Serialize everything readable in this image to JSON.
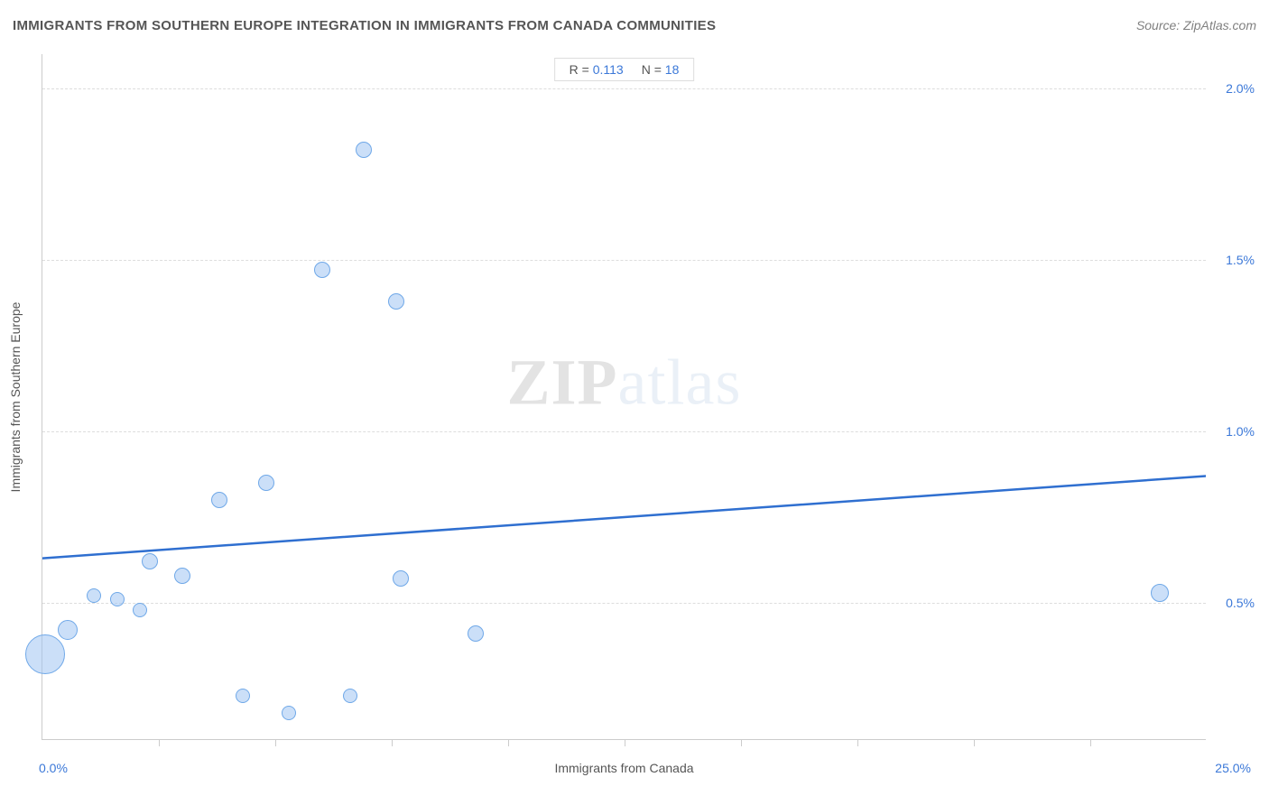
{
  "title": "IMMIGRANTS FROM SOUTHERN EUROPE INTEGRATION IN IMMIGRANTS FROM CANADA COMMUNITIES",
  "source": "Source: ZipAtlas.com",
  "watermark": {
    "zip": "ZIP",
    "atlas": "atlas"
  },
  "stats": {
    "r_label": "R =",
    "r_value": "0.113",
    "n_label": "N =",
    "n_value": "18"
  },
  "chart": {
    "type": "scatter",
    "x_axis": {
      "title": "Immigrants from Canada",
      "min": 0.0,
      "max": 25.0,
      "min_label": "0.0%",
      "max_label": "25.0%",
      "tick_positions": [
        2.5,
        5.0,
        7.5,
        10.0,
        12.5,
        15.0,
        17.5,
        20.0,
        22.5
      ]
    },
    "y_axis": {
      "title": "Immigrants from Southern Europe",
      "min": 0.1,
      "max": 2.1,
      "gridlines": [
        0.5,
        1.0,
        1.5,
        2.0
      ],
      "gridline_labels": [
        "0.5%",
        "1.0%",
        "1.5%",
        "2.0%"
      ]
    },
    "bubble_fill": "rgba(160,197,242,0.55)",
    "bubble_stroke": "#6fa8e8",
    "trend": {
      "color": "#2f6fd0",
      "width": 2.5,
      "y_at_xmin": 0.63,
      "y_at_xmax": 0.87
    },
    "points": [
      {
        "x": 0.05,
        "y": 0.35,
        "r": 22
      },
      {
        "x": 0.55,
        "y": 0.42,
        "r": 11
      },
      {
        "x": 1.1,
        "y": 0.52,
        "r": 8
      },
      {
        "x": 1.6,
        "y": 0.51,
        "r": 8
      },
      {
        "x": 2.1,
        "y": 0.48,
        "r": 8
      },
      {
        "x": 2.3,
        "y": 0.62,
        "r": 9
      },
      {
        "x": 3.0,
        "y": 0.58,
        "r": 9
      },
      {
        "x": 3.8,
        "y": 0.8,
        "r": 9
      },
      {
        "x": 4.8,
        "y": 0.85,
        "r": 9
      },
      {
        "x": 4.3,
        "y": 0.23,
        "r": 8
      },
      {
        "x": 5.3,
        "y": 0.18,
        "r": 8
      },
      {
        "x": 6.6,
        "y": 0.23,
        "r": 8
      },
      {
        "x": 6.0,
        "y": 1.47,
        "r": 9
      },
      {
        "x": 6.9,
        "y": 1.82,
        "r": 9
      },
      {
        "x": 7.6,
        "y": 1.38,
        "r": 9
      },
      {
        "x": 7.7,
        "y": 0.57,
        "r": 9
      },
      {
        "x": 9.3,
        "y": 0.41,
        "r": 9
      },
      {
        "x": 24.0,
        "y": 0.53,
        "r": 10
      }
    ]
  }
}
